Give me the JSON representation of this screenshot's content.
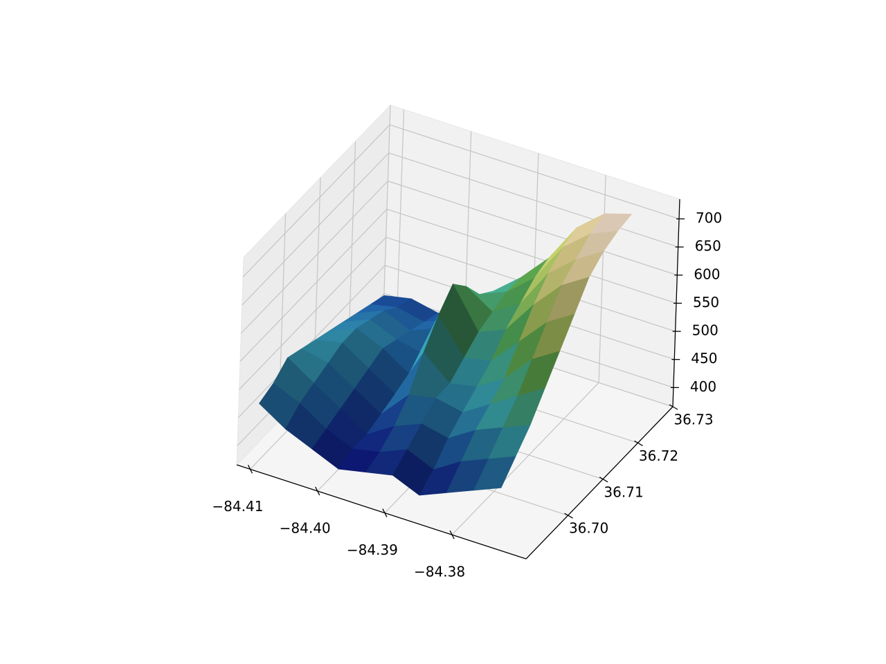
{
  "chart_data": {
    "type": "surface",
    "xlim": [
      -84.412,
      -84.369
    ],
    "ylim": [
      36.688,
      36.73
    ],
    "zlim": [
      366,
      735
    ],
    "xticks": [
      {
        "value": -84.41,
        "label": "−84.41"
      },
      {
        "value": -84.4,
        "label": "−84.40"
      },
      {
        "value": -84.39,
        "label": "−84.39"
      },
      {
        "value": -84.38,
        "label": "−84.38"
      }
    ],
    "yticks": [
      {
        "value": 36.7,
        "label": "36.70"
      },
      36.71,
      36.72,
      36.73
    ],
    "zticks": [
      400,
      450,
      500,
      550,
      600,
      650,
      700
    ],
    "grid": true,
    "colormap": [
      "#0b0b7a",
      "#1f5fa0",
      "#3aa6a8",
      "#4e9a48",
      "#a8b85c",
      "#d8c888",
      "#f2dcd2"
    ],
    "x": [
      -84.41,
      -84.406,
      -84.402,
      -84.398,
      -84.394,
      -84.39,
      -84.386,
      -84.382,
      -84.378,
      -84.374
    ],
    "y": [
      36.69,
      36.694,
      36.698,
      36.702,
      36.706,
      36.71,
      36.714,
      36.718,
      36.722,
      36.726
    ],
    "z": [
      [
        470,
        440,
        420,
        400,
        410,
        420,
        400,
        420,
        440,
        460
      ],
      [
        480,
        460,
        430,
        410,
        420,
        440,
        420,
        450,
        470,
        490
      ],
      [
        500,
        470,
        440,
        410,
        440,
        460,
        450,
        480,
        500,
        520
      ],
      [
        490,
        480,
        450,
        420,
        470,
        480,
        470,
        500,
        530,
        560
      ],
      [
        480,
        490,
        460,
        430,
        520,
        480,
        490,
        520,
        570,
        600
      ],
      [
        470,
        490,
        470,
        440,
        560,
        500,
        510,
        560,
        610,
        640
      ],
      [
        460,
        480,
        460,
        450,
        590,
        520,
        540,
        600,
        650,
        680
      ],
      [
        450,
        470,
        450,
        470,
        560,
        530,
        560,
        630,
        670,
        700
      ],
      [
        440,
        450,
        440,
        460,
        520,
        540,
        580,
        650,
        690,
        710
      ],
      [
        430,
        440,
        430,
        450,
        500,
        540,
        590,
        660,
        700,
        715
      ]
    ]
  }
}
